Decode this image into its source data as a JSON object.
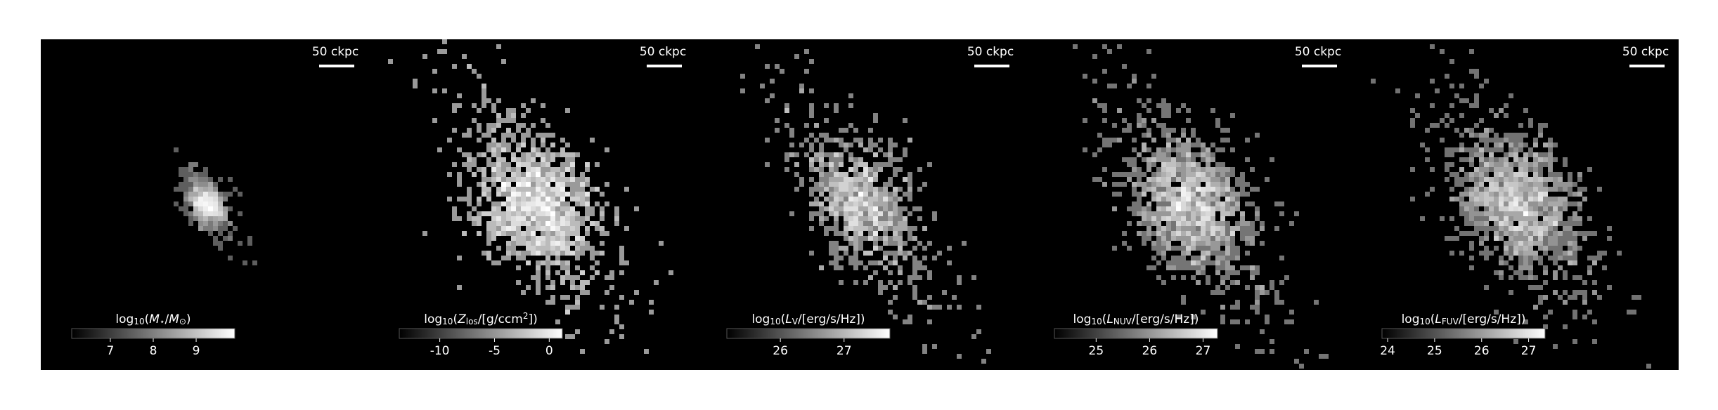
{
  "chart_data": [
    {
      "type": "image",
      "scale_bar": "50 ckpc",
      "colorbar": {
        "clim": [
          6.1,
          9.9
        ],
        "ticks": [
          7,
          8,
          9
        ],
        "label": [
          {
            "text": "log"
          },
          {
            "text": "10",
            "pos": "sub"
          },
          {
            "text": "("
          },
          {
            "text": "M",
            "italic": true
          },
          {
            "text": "⋆",
            "pos": "sub"
          },
          {
            "text": "/"
          },
          {
            "text": "M",
            "italic": true
          },
          {
            "text": "⊙",
            "pos": "sub"
          },
          {
            "text": ")"
          }
        ]
      }
    },
    {
      "type": "image",
      "scale_bar": "50 ckpc",
      "colorbar": {
        "clim": [
          -13.7,
          1.2
        ],
        "ticks": [
          -10,
          -5,
          0
        ],
        "label": [
          {
            "text": "log"
          },
          {
            "text": "10",
            "pos": "sub"
          },
          {
            "text": "("
          },
          {
            "text": "Z",
            "italic": true
          },
          {
            "text": "los",
            "pos": "sub"
          },
          {
            "text": "/[g/ccm"
          },
          {
            "text": "2",
            "pos": "sup"
          },
          {
            "text": "])"
          }
        ]
      }
    },
    {
      "type": "image",
      "scale_bar": "50 ckpc",
      "colorbar": {
        "clim": [
          25.16,
          27.72
        ],
        "ticks": [
          26,
          27
        ],
        "label": [
          {
            "text": "log"
          },
          {
            "text": "10",
            "pos": "sub"
          },
          {
            "text": "("
          },
          {
            "text": "L",
            "italic": true
          },
          {
            "text": "V",
            "pos": "sub"
          },
          {
            "text": "/[erg/s/Hz])"
          }
        ]
      }
    },
    {
      "type": "image",
      "scale_bar": "50 ckpc",
      "colorbar": {
        "clim": [
          24.22,
          27.27
        ],
        "ticks": [
          25,
          26,
          27
        ],
        "label": [
          {
            "text": "log"
          },
          {
            "text": "10",
            "pos": "sub"
          },
          {
            "text": "("
          },
          {
            "text": "L",
            "italic": true
          },
          {
            "text": "NUV",
            "pos": "sub"
          },
          {
            "text": "/[erg/s/Hz])"
          }
        ]
      }
    },
    {
      "type": "image",
      "scale_bar": "50 ckpc",
      "colorbar": {
        "clim": [
          23.88,
          27.35
        ],
        "ticks": [
          24,
          25,
          26,
          27
        ],
        "label": [
          {
            "text": "log"
          },
          {
            "text": "10",
            "pos": "sub"
          },
          {
            "text": "("
          },
          {
            "text": "L",
            "italic": true
          },
          {
            "text": "FUV",
            "pos": "sub"
          },
          {
            "text": "/[erg/s/Hz])"
          }
        ]
      }
    }
  ]
}
